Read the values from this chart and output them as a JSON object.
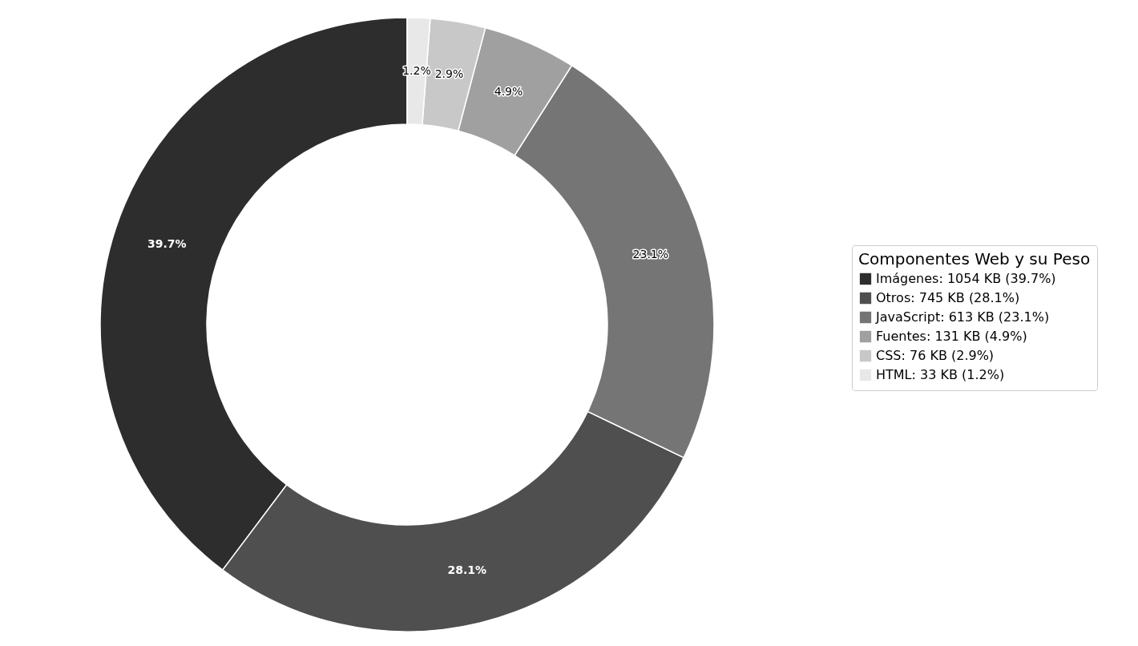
{
  "chart_data": {
    "type": "donut",
    "legend_title": "Componentes Web y su Peso",
    "categories": [
      "Imágenes: 1054 KB (39.7%)",
      "Otros: 745 KB (28.1%)",
      "JavaScript: 613 KB (23.1%)",
      "Fuentes: 131 KB (4.9%)",
      "CSS: 76 KB (2.9%)",
      "HTML: 33 KB (1.2%)"
    ],
    "values": [
      39.7,
      28.1,
      23.1,
      4.9,
      2.9,
      1.2
    ],
    "value_labels": [
      "39.7%",
      "28.1%",
      "23.1%",
      "4.9%",
      "2.9%",
      "1.2%"
    ],
    "colors": [
      "#2d2d2d",
      "#4f4f4f",
      "#757575",
      "#a0a0a0",
      "#c8c8c8",
      "#e8e8e8"
    ],
    "legend": "right"
  }
}
